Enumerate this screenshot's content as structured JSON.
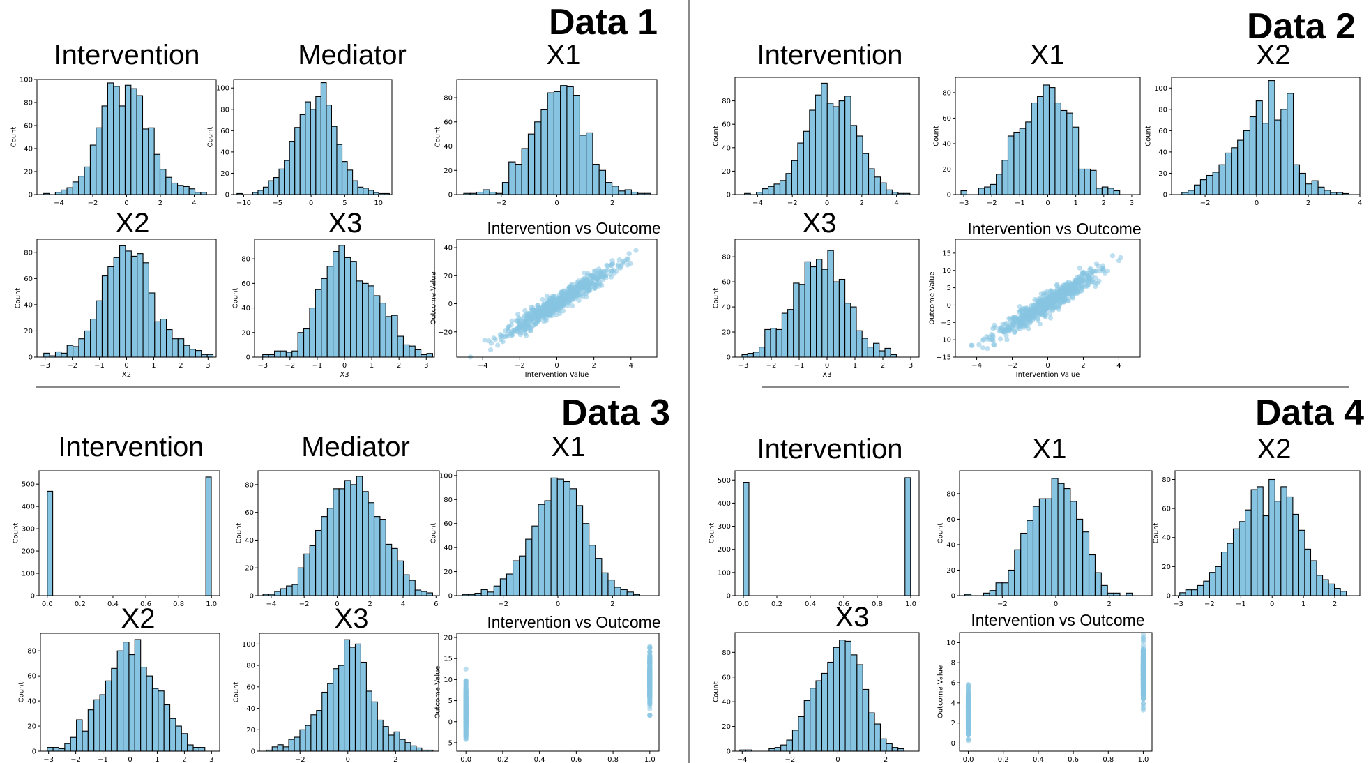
{
  "figure": {
    "section_titles": [
      "Data 1",
      "Data 2",
      "Data 3",
      "Data 4"
    ],
    "bar_color": "#87c4e2",
    "scatter_color": "#87c4e2",
    "edge_color": "#000000",
    "count_label": "Count"
  },
  "chart_data": [
    {
      "type": "bar",
      "section": "Data 1",
      "title": "Intervention",
      "xlabel": "",
      "ylabel": "Count",
      "xlim": [
        -5.3,
        5.3
      ],
      "ylim": [
        0,
        100
      ],
      "xticks": [
        -4,
        -2,
        0,
        2,
        4
      ],
      "yticks": [
        0,
        20,
        40,
        60,
        80,
        100
      ],
      "bin_start": -4.9,
      "bin_width": 0.344,
      "values": [
        1,
        0,
        2,
        4,
        6,
        11,
        16,
        24,
        43,
        58,
        77,
        97,
        94,
        77,
        95,
        92,
        86,
        57,
        58,
        35,
        22,
        15,
        10,
        8,
        7,
        5,
        2,
        2
      ]
    },
    {
      "type": "bar",
      "section": "Data 1",
      "title": "Mediator",
      "xlabel": "",
      "ylabel": "Count",
      "xlim": [
        -11.5,
        12
      ],
      "ylim": [
        0,
        108
      ],
      "xticks": [
        -10,
        -5,
        0,
        5,
        10
      ],
      "yticks": [
        0,
        20,
        40,
        60,
        80,
        100
      ],
      "bin_start": -11,
      "bin_width": 0.78,
      "values": [
        1,
        0,
        0,
        2,
        4,
        7,
        13,
        16,
        24,
        32,
        50,
        63,
        75,
        87,
        80,
        92,
        105,
        84,
        64,
        47,
        31,
        23,
        13,
        7,
        6,
        4,
        2,
        1,
        1
      ]
    },
    {
      "type": "bar",
      "section": "Data 1",
      "title": "X1",
      "xlabel": "",
      "ylabel": "Count",
      "xlim": [
        -3.6,
        3.6
      ],
      "ylim": [
        0,
        95
      ],
      "xticks": [
        -2,
        0,
        2
      ],
      "yticks": [
        0,
        20,
        40,
        60,
        80
      ],
      "bin_start": -3.35,
      "bin_width": 0.232,
      "values": [
        1,
        1,
        2,
        4,
        2,
        1,
        10,
        27,
        25,
        38,
        50,
        60,
        70,
        84,
        85,
        90,
        89,
        82,
        49,
        51,
        25,
        20,
        10,
        7,
        3,
        4,
        2,
        1,
        1,
        0
      ]
    },
    {
      "type": "bar",
      "section": "Data 1",
      "title": "X2",
      "xlabel": "X2",
      "ylabel": "Count",
      "xlim": [
        -3.3,
        3.3
      ],
      "ylim": [
        0,
        90
      ],
      "xticks": [
        -3,
        -2,
        -1,
        0,
        1,
        2,
        3
      ],
      "yticks": [
        0,
        20,
        40,
        60,
        80
      ],
      "bin_start": -3.05,
      "bin_width": 0.215,
      "values": [
        3,
        1,
        4,
        3,
        9,
        8,
        14,
        20,
        29,
        43,
        62,
        69,
        76,
        85,
        81,
        77,
        79,
        72,
        49,
        27,
        29,
        21,
        14,
        14,
        9,
        6,
        5,
        2,
        2
      ]
    },
    {
      "type": "bar",
      "section": "Data 1",
      "title": "X3",
      "xlabel": "X3",
      "ylabel": "Count",
      "xlim": [
        -3.3,
        3.3
      ],
      "ylim": [
        0,
        96
      ],
      "xticks": [
        -3,
        -2,
        -1,
        0,
        1,
        2,
        3
      ],
      "yticks": [
        0,
        20,
        40,
        60,
        80
      ],
      "bin_start": -3.0,
      "bin_width": 0.215,
      "values": [
        2,
        2,
        5,
        5,
        4,
        5,
        20,
        23,
        40,
        55,
        64,
        74,
        86,
        91,
        81,
        78,
        62,
        60,
        58,
        50,
        44,
        33,
        34,
        17,
        10,
        9,
        6,
        2,
        3
      ]
    },
    {
      "type": "scatter",
      "section": "Data 1",
      "title": "Intervention vs Outcome",
      "xlabel": "Intervention Value",
      "ylabel": "Outcome Value",
      "xlim": [
        -5.4,
        5.4
      ],
      "ylim": [
        -38,
        46
      ],
      "xticks": [
        -4,
        -2,
        0,
        2,
        4
      ],
      "yticks": [
        -20,
        0,
        20,
        40
      ],
      "relation": {
        "slope": 8.1,
        "intercept": 0.3,
        "noise": 3.2,
        "x_mean": 0.05,
        "x_sd": 1.45,
        "x_min": -4.9,
        "x_max": 5.0,
        "n": 700
      }
    },
    {
      "type": "bar",
      "section": "Data 2",
      "title": "Intervention",
      "xlabel": "",
      "ylabel": "Count",
      "xlim": [
        -5.3,
        5.3
      ],
      "ylim": [
        0,
        100
      ],
      "xticks": [
        -4,
        -2,
        0,
        2,
        4
      ],
      "yticks": [
        0,
        20,
        40,
        60,
        80
      ],
      "bin_start": -4.75,
      "bin_width": 0.34,
      "values": [
        1,
        0,
        2,
        5,
        7,
        9,
        12,
        18,
        29,
        44,
        54,
        72,
        85,
        95,
        78,
        75,
        80,
        84,
        59,
        50,
        35,
        22,
        15,
        10,
        4,
        2,
        1,
        1
      ]
    },
    {
      "type": "bar",
      "section": "Data 2",
      "title": "X1",
      "xlabel": "",
      "ylabel": "Count",
      "xlim": [
        -3.3,
        3.3
      ],
      "ylim": [
        0,
        92
      ],
      "xticks": [
        -3,
        -2,
        -1,
        0,
        1,
        2,
        3
      ],
      "yticks": [
        0,
        20,
        40,
        60,
        80
      ],
      "bin_start": -3.1,
      "bin_width": 0.21,
      "values": [
        3,
        0,
        0,
        5,
        6,
        8,
        16,
        27,
        46,
        49,
        52,
        57,
        72,
        77,
        86,
        84,
        72,
        66,
        64,
        53,
        20,
        20,
        19,
        5,
        6,
        5,
        3
      ]
    },
    {
      "type": "bar",
      "section": "Data 2",
      "title": "X2",
      "xlabel": "",
      "ylabel": "Count",
      "xlim": [
        -3.3,
        4.0
      ],
      "ylim": [
        0,
        110
      ],
      "xticks": [
        -2,
        0,
        2,
        4
      ],
      "yticks": [
        0,
        20,
        40,
        60,
        80,
        100
      ],
      "bin_start": -2.9,
      "bin_width": 0.24,
      "values": [
        2,
        4,
        9,
        14,
        18,
        21,
        28,
        39,
        44,
        51,
        60,
        73,
        88,
        67,
        107,
        70,
        80,
        95,
        28,
        20,
        10,
        13,
        7,
        4,
        2,
        2,
        1
      ]
    },
    {
      "type": "bar",
      "section": "Data 2",
      "title": "X3",
      "xlabel": "X3",
      "ylabel": "Count",
      "xlim": [
        -3.3,
        3.3
      ],
      "ylim": [
        0,
        94
      ],
      "xticks": [
        -3,
        -2,
        -1,
        0,
        1,
        2,
        3
      ],
      "yticks": [
        0,
        20,
        40,
        60,
        80
      ],
      "bin_start": -3.05,
      "bin_width": 0.205,
      "values": [
        2,
        3,
        4,
        8,
        22,
        23,
        22,
        35,
        38,
        59,
        58,
        76,
        72,
        78,
        70,
        85,
        60,
        62,
        43,
        40,
        21,
        15,
        8,
        11,
        5,
        7,
        2
      ]
    },
    {
      "type": "scatter",
      "section": "Data 2",
      "title": "Intervention vs Outcome",
      "xlabel": "Intervention Value",
      "ylabel": "Outcome Value",
      "xlim": [
        -5.2,
        5.2
      ],
      "ylim": [
        -15,
        19
      ],
      "xticks": [
        -4,
        -2,
        0,
        2,
        4
      ],
      "yticks": [
        -15,
        -10,
        -5,
        0,
        5,
        10,
        15
      ],
      "relation": {
        "slope": 3.1,
        "intercept": 0.5,
        "noise": 1.4,
        "x_mean": 0.05,
        "x_sd": 1.45,
        "x_min": -4.8,
        "x_max": 4.1,
        "n": 700
      }
    },
    {
      "type": "bar",
      "section": "Data 3",
      "title": "Intervention",
      "xlabel": "",
      "ylabel": "Count",
      "xlim": [
        -0.05,
        1.05
      ],
      "ylim": [
        0,
        560
      ],
      "xticks": [
        0.0,
        0.2,
        0.4,
        0.6,
        0.8,
        1.0
      ],
      "yticks": [
        0,
        100,
        200,
        300,
        400,
        500
      ],
      "bin_start": 0,
      "bin_width": 0.0333,
      "values": [
        468,
        0,
        0,
        0,
        0,
        0,
        0,
        0,
        0,
        0,
        0,
        0,
        0,
        0,
        0,
        0,
        0,
        0,
        0,
        0,
        0,
        0,
        0,
        0,
        0,
        0,
        0,
        0,
        0,
        532
      ]
    },
    {
      "type": "bar",
      "section": "Data 3",
      "title": "Mediator",
      "xlabel": "",
      "ylabel": "Count",
      "xlim": [
        -4.8,
        6.2
      ],
      "ylim": [
        0,
        90
      ],
      "xticks": [
        -4,
        -2,
        0,
        2,
        4,
        6
      ],
      "yticks": [
        0,
        20,
        40,
        60,
        80
      ],
      "bin_start": -4.5,
      "bin_width": 0.355,
      "values": [
        1,
        1,
        3,
        5,
        7,
        8,
        20,
        30,
        36,
        47,
        57,
        63,
        77,
        77,
        83,
        80,
        86,
        75,
        67,
        57,
        55,
        37,
        34,
        25,
        15,
        11,
        4,
        3,
        2
      ]
    },
    {
      "type": "bar",
      "section": "Data 3",
      "title": "X1",
      "xlabel": "",
      "ylabel": "Count",
      "xlim": [
        -3.7,
        3.7
      ],
      "ylim": [
        0,
        104
      ],
      "xticks": [
        -2,
        0,
        2
      ],
      "yticks": [
        0,
        20,
        40,
        60,
        80,
        100
      ],
      "bin_start": -3.5,
      "bin_width": 0.232,
      "values": [
        1,
        1,
        2,
        5,
        3,
        8,
        14,
        18,
        29,
        33,
        47,
        58,
        76,
        79,
        98,
        97,
        95,
        89,
        75,
        60,
        42,
        31,
        19,
        13,
        7,
        5,
        3,
        1
      ]
    },
    {
      "type": "bar",
      "section": "Data 3",
      "title": "X2",
      "xlabel": "",
      "ylabel": "Count",
      "xlim": [
        -3.3,
        3.3
      ],
      "ylim": [
        0,
        94
      ],
      "xticks": [
        -3,
        -2,
        -1,
        0,
        1,
        2,
        3
      ],
      "yticks": [
        0,
        20,
        40,
        60,
        80
      ],
      "bin_start": -3.05,
      "bin_width": 0.215,
      "values": [
        3,
        3,
        2,
        6,
        11,
        25,
        16,
        33,
        41,
        45,
        56,
        66,
        80,
        87,
        77,
        89,
        67,
        60,
        50,
        48,
        37,
        26,
        20,
        14,
        5,
        3,
        3
      ]
    },
    {
      "type": "bar",
      "section": "Data 3",
      "title": "X3",
      "xlabel": "",
      "ylabel": "Count",
      "xlim": [
        -3.7,
        3.8
      ],
      "ylim": [
        0,
        110
      ],
      "xticks": [
        -2,
        0,
        2
      ],
      "yticks": [
        0,
        20,
        40,
        60,
        80,
        100
      ],
      "bin_start": -3.4,
      "bin_width": 0.232,
      "values": [
        1,
        4,
        6,
        4,
        11,
        13,
        20,
        24,
        34,
        38,
        55,
        63,
        77,
        80,
        104,
        97,
        100,
        83,
        56,
        46,
        29,
        23,
        15,
        18,
        11,
        8,
        5,
        3,
        1,
        1
      ]
    },
    {
      "type": "scatter",
      "section": "Data 3",
      "title": "Intervention vs Outcome",
      "xlabel": "",
      "ylabel": "Outcome Value",
      "xlim": [
        -0.05,
        1.05
      ],
      "ylim": [
        -7,
        21
      ],
      "xticks": [
        0.0,
        0.2,
        0.4,
        0.6,
        0.8,
        1.0
      ],
      "yticks": [
        -5,
        0,
        5,
        10,
        15,
        20
      ],
      "groups": [
        {
          "x": 0,
          "y_min": -5,
          "y_max": 12.5,
          "y_mean": 2.5,
          "y_sd": 3.0,
          "n": 300
        },
        {
          "x": 1,
          "y_min": 1.5,
          "y_max": 20,
          "y_mean": 10.2,
          "y_sd": 3.0,
          "n": 300
        }
      ]
    },
    {
      "type": "bar",
      "section": "Data 4",
      "title": "Intervention",
      "xlabel": "",
      "ylabel": "Count",
      "xlim": [
        -0.05,
        1.05
      ],
      "ylim": [
        0,
        540
      ],
      "xticks": [
        0.0,
        0.2,
        0.4,
        0.6,
        0.8,
        1.0
      ],
      "yticks": [
        0,
        100,
        200,
        300,
        400,
        500
      ],
      "bin_start": 0,
      "bin_width": 0.0333,
      "values": [
        490,
        0,
        0,
        0,
        0,
        0,
        0,
        0,
        0,
        0,
        0,
        0,
        0,
        0,
        0,
        0,
        0,
        0,
        0,
        0,
        0,
        0,
        0,
        0,
        0,
        0,
        0,
        0,
        0,
        510
      ]
    },
    {
      "type": "bar",
      "section": "Data 4",
      "title": "X1",
      "xlabel": "",
      "ylabel": "Count",
      "xlim": [
        -3.6,
        3.6
      ],
      "ylim": [
        0,
        98
      ],
      "xticks": [
        -2,
        0,
        2
      ],
      "yticks": [
        0,
        20,
        40,
        60,
        80
      ],
      "bin_start": -3.4,
      "bin_width": 0.232,
      "values": [
        1,
        0,
        0,
        2,
        4,
        10,
        10,
        20,
        36,
        49,
        59,
        70,
        76,
        76,
        92,
        88,
        84,
        74,
        60,
        50,
        32,
        18,
        8,
        2,
        2,
        0,
        2
      ]
    },
    {
      "type": "bar",
      "section": "Data 4",
      "title": "X2",
      "xlabel": "",
      "ylabel": "Count",
      "xlim": [
        -3.1,
        2.8
      ],
      "ylim": [
        0,
        86
      ],
      "xticks": [
        -3,
        -2,
        -1,
        0,
        1,
        2
      ],
      "yticks": [
        0,
        20,
        40,
        60,
        80
      ],
      "bin_start": -2.95,
      "bin_width": 0.19,
      "values": [
        2,
        4,
        4,
        7,
        10,
        16,
        20,
        30,
        36,
        46,
        51,
        59,
        73,
        75,
        55,
        80,
        65,
        75,
        68,
        56,
        45,
        32,
        24,
        14,
        11,
        8,
        5,
        3
      ]
    },
    {
      "type": "bar",
      "section": "Data 4",
      "title": "X3",
      "xlabel": "",
      "ylabel": "Count",
      "xlim": [
        -4.3,
        3.4
      ],
      "ylim": [
        0,
        96
      ],
      "xticks": [
        -4,
        -2,
        0,
        2
      ],
      "yticks": [
        0,
        20,
        40,
        60,
        80
      ],
      "bin_start": -4.1,
      "bin_width": 0.245,
      "values": [
        1,
        1,
        0,
        0,
        0,
        2,
        3,
        5,
        9,
        17,
        28,
        41,
        51,
        57,
        63,
        72,
        84,
        90,
        89,
        78,
        70,
        50,
        31,
        22,
        10,
        6,
        3,
        2
      ]
    },
    {
      "type": "scatter",
      "section": "Data 4",
      "title": "Intervention vs Outcome",
      "xlabel": "",
      "ylabel": "Outcome Value",
      "xlim": [
        -0.05,
        1.05
      ],
      "ylim": [
        -0.8,
        11
      ],
      "xticks": [
        0.0,
        0.2,
        0.4,
        0.6,
        0.8,
        1.0
      ],
      "yticks": [
        0,
        2,
        4,
        6,
        8,
        10
      ],
      "groups": [
        {
          "x": 0,
          "y_min": 0.2,
          "y_max": 6,
          "y_mean": 3.0,
          "y_sd": 1.1,
          "n": 300
        },
        {
          "x": 1,
          "y_min": 3,
          "y_max": 10.8,
          "y_mean": 7.0,
          "y_sd": 1.3,
          "n": 300
        }
      ]
    }
  ]
}
